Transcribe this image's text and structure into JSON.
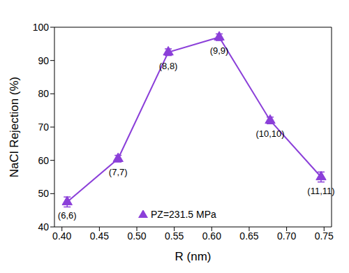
{
  "chart_data": {
    "type": "line",
    "x_label": "R (nm)",
    "y_label": "NaCl Rejection (%)",
    "series": [
      {
        "name": "PZ=231.5 MPa",
        "color": "#8b3fd9",
        "marker": "triangle",
        "x": [
          0.407,
          0.475,
          0.542,
          0.61,
          0.678,
          0.746
        ],
        "values": [
          47.5,
          60.5,
          92.5,
          97,
          72,
          55
        ],
        "errors": [
          1.5,
          1,
          1,
          1,
          1,
          1.5
        ]
      }
    ],
    "annotations": [
      "(6,6)",
      "(7,7)",
      "(8,8)",
      "(9,9)",
      "(10,10)",
      "(11,11)"
    ],
    "xlim": [
      0.39,
      0.76
    ],
    "xticks": [
      {
        "value": 0.4,
        "label": "0.40"
      },
      {
        "value": 0.45,
        "label": "0.45"
      },
      {
        "value": 0.5,
        "label": "0.50"
      },
      {
        "value": 0.55,
        "label": "0.55"
      },
      {
        "value": 0.6,
        "label": "0.60"
      },
      {
        "value": 0.65,
        "label": "0.65"
      },
      {
        "value": 0.7,
        "label": "0.70"
      },
      {
        "value": 0.75,
        "label": "0.75"
      }
    ],
    "ylim": [
      40,
      100
    ],
    "yticks": [
      40,
      50,
      60,
      70,
      80,
      90,
      100
    ],
    "grid": false,
    "legend": "lower center"
  }
}
